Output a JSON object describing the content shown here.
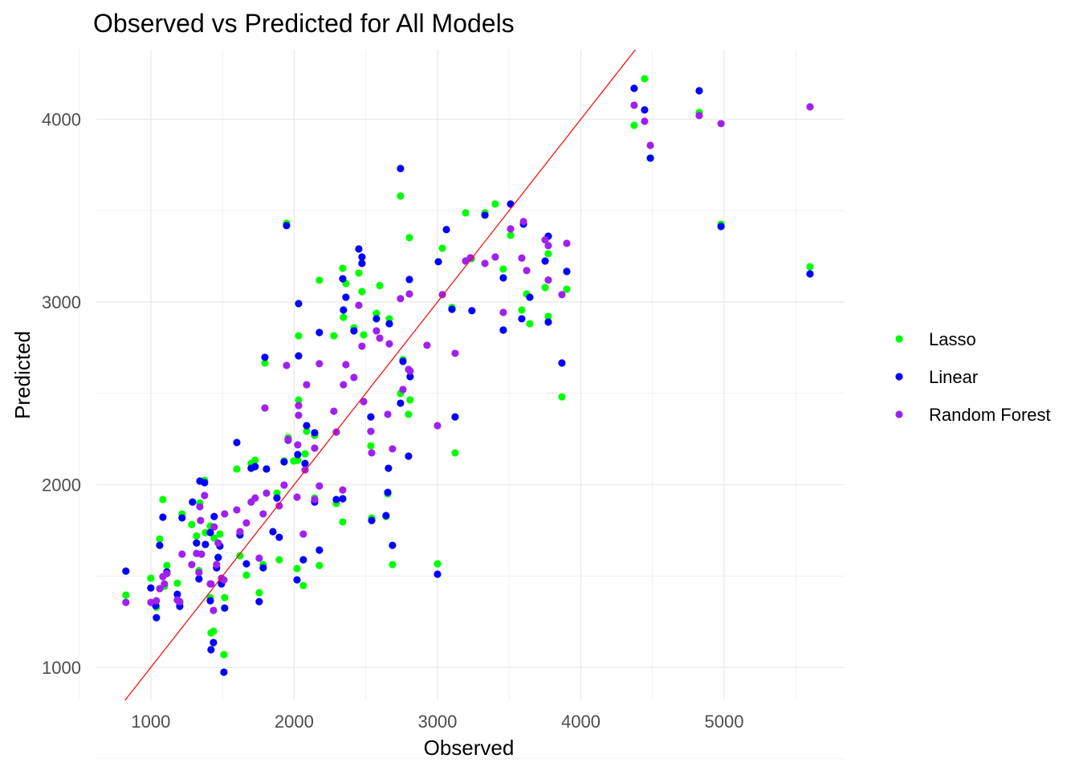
{
  "chart_data": {
    "type": "scatter",
    "title": "Observed vs Predicted for All Models",
    "xlabel": "Observed",
    "ylabel": "Predicted",
    "xlim": [
      620,
      5840
    ],
    "ylim": [
      820,
      4380
    ],
    "x_ticks": [
      1000,
      2000,
      3000,
      4000,
      5000
    ],
    "y_ticks": [
      1000,
      2000,
      3000,
      4000
    ],
    "grid": true,
    "legend_position": "right",
    "reference_line": {
      "type": "identity",
      "color": "#FF0000"
    },
    "series": [
      {
        "name": "Lasso",
        "color": "#00FF00",
        "points": [
          [
            4372,
            3967
          ],
          [
            4445,
            4222
          ],
          [
            4485,
            3787
          ],
          [
            4826,
            4037
          ],
          [
            4978,
            3426
          ],
          [
            5599,
            3193
          ],
          [
            3868,
            2481
          ],
          [
            3902,
            3070
          ],
          [
            3773,
            3264
          ],
          [
            3773,
            2921
          ],
          [
            3751,
            3079
          ],
          [
            3622,
            3044
          ],
          [
            3600,
            3430
          ],
          [
            3588,
            2956
          ],
          [
            3644,
            2881
          ],
          [
            3459,
            3180
          ],
          [
            3459,
            2846
          ],
          [
            3510,
            3365
          ],
          [
            3403,
            3536
          ],
          [
            3331,
            3488
          ],
          [
            3196,
            3488
          ],
          [
            3237,
            3237
          ],
          [
            3034,
            3294
          ],
          [
            3000,
            1567
          ],
          [
            3123,
            2174
          ],
          [
            3101,
            2970
          ],
          [
            2804,
            3352
          ],
          [
            2742,
            3580
          ],
          [
            2798,
            2385
          ],
          [
            2809,
            2464
          ],
          [
            2759,
            2684
          ],
          [
            2742,
            2499
          ],
          [
            2686,
            1563
          ],
          [
            2641,
            1826
          ],
          [
            2653,
            1950
          ],
          [
            2664,
            2908
          ],
          [
            2541,
            1818
          ],
          [
            2535,
            2213
          ],
          [
            2597,
            3090
          ],
          [
            2574,
            2938
          ],
          [
            2451,
            3158
          ],
          [
            2473,
            3057
          ],
          [
            2417,
            2859
          ],
          [
            2485,
            2820
          ],
          [
            2339,
            3184
          ],
          [
            2361,
            3101
          ],
          [
            2344,
            2916
          ],
          [
            2339,
            1796
          ],
          [
            2294,
            1897
          ],
          [
            2176,
            3119
          ],
          [
            2176,
            1558
          ],
          [
            2143,
            2270
          ],
          [
            2143,
            1927
          ],
          [
            2277,
            2815
          ],
          [
            2087,
            2292
          ],
          [
            2076,
            2169
          ],
          [
            2064,
            1448
          ],
          [
            2031,
            2815
          ],
          [
            2031,
            2464
          ],
          [
            2020,
            1541
          ],
          [
            2025,
            2134
          ],
          [
            1947,
            3431
          ],
          [
            1958,
            2257
          ],
          [
            1997,
            2130
          ],
          [
            1930,
            2130
          ],
          [
            1896,
            1589
          ],
          [
            1880,
            1954
          ],
          [
            1796,
            2666
          ],
          [
            1807,
            2086
          ],
          [
            1784,
            1563
          ],
          [
            1756,
            1409
          ],
          [
            1728,
            2134
          ],
          [
            1700,
            2116
          ],
          [
            1600,
            2086
          ],
          [
            1667,
            1505
          ],
          [
            1622,
            1611
          ],
          [
            1510,
            1070
          ],
          [
            1515,
            1382
          ],
          [
            1437,
            1198
          ],
          [
            1420,
            1189
          ],
          [
            1442,
            1708
          ],
          [
            1415,
            1774
          ],
          [
            1470,
            1602
          ],
          [
            1482,
            1730
          ],
          [
            1459,
            1545
          ],
          [
            1493,
            1465
          ],
          [
            1415,
            1382
          ],
          [
            1375,
            2024
          ],
          [
            1342,
            1900
          ],
          [
            1381,
            1738
          ],
          [
            1353,
            1620
          ],
          [
            1336,
            1530
          ],
          [
            1319,
            1720
          ],
          [
            1286,
            1782
          ],
          [
            1218,
            1840
          ],
          [
            1185,
            1461
          ],
          [
            1202,
            1347
          ],
          [
            1112,
            1558
          ],
          [
            1084,
            1919
          ],
          [
            1062,
            1703
          ],
          [
            1095,
            1444
          ],
          [
            1039,
            1330
          ],
          [
            1000,
            1488
          ],
          [
            826,
            1396
          ]
        ]
      },
      {
        "name": "Linear",
        "color": "#0000FF",
        "points": [
          [
            4372,
            4169
          ],
          [
            4445,
            4051
          ],
          [
            4485,
            3787
          ],
          [
            4826,
            4156
          ],
          [
            4978,
            3413
          ],
          [
            5599,
            3154
          ],
          [
            3868,
            2666
          ],
          [
            3902,
            3167
          ],
          [
            3773,
            3360
          ],
          [
            3773,
            2890
          ],
          [
            3751,
            3224
          ],
          [
            3644,
            3026
          ],
          [
            3600,
            3426
          ],
          [
            3588,
            2908
          ],
          [
            3459,
            3132
          ],
          [
            3459,
            2846
          ],
          [
            3510,
            3536
          ],
          [
            3331,
            3475
          ],
          [
            3240,
            2952
          ],
          [
            3062,
            3396
          ],
          [
            3006,
            3220
          ],
          [
            3000,
            1510
          ],
          [
            3123,
            2371
          ],
          [
            3101,
            2960
          ],
          [
            2804,
            3123
          ],
          [
            2742,
            3730
          ],
          [
            2798,
            2156
          ],
          [
            2809,
            2591
          ],
          [
            2759,
            2675
          ],
          [
            2742,
            2446
          ],
          [
            2686,
            1668
          ],
          [
            2641,
            1831
          ],
          [
            2653,
            1958
          ],
          [
            2664,
            2881
          ],
          [
            2658,
            2090
          ],
          [
            2541,
            1804
          ],
          [
            2535,
            2371
          ],
          [
            2574,
            2908
          ],
          [
            2451,
            3290
          ],
          [
            2473,
            3246
          ],
          [
            2473,
            3211
          ],
          [
            2417,
            2842
          ],
          [
            2339,
            3127
          ],
          [
            2361,
            3026
          ],
          [
            2344,
            2956
          ],
          [
            2339,
            1923
          ],
          [
            2294,
            1919
          ],
          [
            2176,
            2833
          ],
          [
            2176,
            1642
          ],
          [
            2143,
            2284
          ],
          [
            2143,
            1905
          ],
          [
            2087,
            2323
          ],
          [
            2076,
            2116
          ],
          [
            2064,
            1589
          ],
          [
            2031,
            2991
          ],
          [
            2031,
            2705
          ],
          [
            2020,
            1479
          ],
          [
            2025,
            2165
          ],
          [
            1947,
            3418
          ],
          [
            1958,
            2244
          ],
          [
            1930,
            2125
          ],
          [
            1896,
            1712
          ],
          [
            1880,
            1927
          ],
          [
            1796,
            2697
          ],
          [
            1807,
            2086
          ],
          [
            1852,
            1743
          ],
          [
            1784,
            1545
          ],
          [
            1756,
            1360
          ],
          [
            1728,
            2099
          ],
          [
            1700,
            2090
          ],
          [
            1600,
            2231
          ],
          [
            1667,
            1567
          ],
          [
            1622,
            1725
          ],
          [
            1510,
            974
          ],
          [
            1515,
            1325
          ],
          [
            1437,
            1136
          ],
          [
            1420,
            1097
          ],
          [
            1442,
            1826
          ],
          [
            1415,
            1738
          ],
          [
            1470,
            1602
          ],
          [
            1482,
            1664
          ],
          [
            1459,
            1545
          ],
          [
            1493,
            1457
          ],
          [
            1415,
            1365
          ],
          [
            1375,
            2011
          ],
          [
            1342,
            2020
          ],
          [
            1381,
            1673
          ],
          [
            1336,
            1484
          ],
          [
            1291,
            1905
          ],
          [
            1319,
            1681
          ],
          [
            1218,
            1818
          ],
          [
            1185,
            1400
          ],
          [
            1202,
            1334
          ],
          [
            1112,
            1523
          ],
          [
            1084,
            1822
          ],
          [
            1062,
            1668
          ],
          [
            1034,
            1338
          ],
          [
            1039,
            1272
          ],
          [
            1000,
            1435
          ],
          [
            826,
            1527
          ]
        ]
      },
      {
        "name": "Random Forest",
        "color": "#A020F0",
        "points": [
          [
            4372,
            4077
          ],
          [
            4445,
            3989
          ],
          [
            4485,
            3857
          ],
          [
            4826,
            4020
          ],
          [
            4978,
            3976
          ],
          [
            5599,
            4068
          ],
          [
            3868,
            3040
          ],
          [
            3902,
            3321
          ],
          [
            3773,
            3308
          ],
          [
            3773,
            3120
          ],
          [
            3751,
            3340
          ],
          [
            3622,
            3172
          ],
          [
            3600,
            3440
          ],
          [
            3588,
            3240
          ],
          [
            3459,
            2943
          ],
          [
            3510,
            3400
          ],
          [
            3403,
            3246
          ],
          [
            3331,
            3211
          ],
          [
            3230,
            3242
          ],
          [
            3196,
            3224
          ],
          [
            3034,
            3040
          ],
          [
            3000,
            2323
          ],
          [
            3123,
            2719
          ],
          [
            2927,
            2763
          ],
          [
            2804,
            3044
          ],
          [
            2742,
            3018
          ],
          [
            2798,
            2631
          ],
          [
            2809,
            2622
          ],
          [
            2759,
            2521
          ],
          [
            2686,
            2196
          ],
          [
            2653,
            2385
          ],
          [
            2664,
            2771
          ],
          [
            2541,
            2174
          ],
          [
            2535,
            2292
          ],
          [
            2597,
            2802
          ],
          [
            2574,
            2842
          ],
          [
            2451,
            2982
          ],
          [
            2473,
            2758
          ],
          [
            2417,
            2587
          ],
          [
            2485,
            2455
          ],
          [
            2361,
            2657
          ],
          [
            2344,
            2547
          ],
          [
            2339,
            1971
          ],
          [
            2294,
            2288
          ],
          [
            2176,
            2662
          ],
          [
            2176,
            1993
          ],
          [
            2143,
            2200
          ],
          [
            2143,
            1919
          ],
          [
            2277,
            2402
          ],
          [
            2087,
            2547
          ],
          [
            2076,
            2081
          ],
          [
            2064,
            1730
          ],
          [
            2031,
            2433
          ],
          [
            2031,
            2380
          ],
          [
            2020,
            1932
          ],
          [
            2025,
            2218
          ],
          [
            1947,
            2653
          ],
          [
            1958,
            2248
          ],
          [
            1930,
            1998
          ],
          [
            1896,
            1884
          ],
          [
            1796,
            2420
          ],
          [
            1807,
            1954
          ],
          [
            1784,
            1840
          ],
          [
            1756,
            1598
          ],
          [
            1728,
            1927
          ],
          [
            1700,
            1905
          ],
          [
            1600,
            1862
          ],
          [
            1667,
            1791
          ],
          [
            1622,
            1743
          ],
          [
            1510,
            1479
          ],
          [
            1515,
            1840
          ],
          [
            1437,
            1312
          ],
          [
            1420,
            1457
          ],
          [
            1442,
            1769
          ],
          [
            1470,
            1681
          ],
          [
            1459,
            1563
          ],
          [
            1493,
            1488
          ],
          [
            1415,
            1457
          ],
          [
            1375,
            1941
          ],
          [
            1342,
            1879
          ],
          [
            1347,
            1804
          ],
          [
            1353,
            1620
          ],
          [
            1336,
            1519
          ],
          [
            1319,
            1624
          ],
          [
            1286,
            1563
          ],
          [
            1218,
            1620
          ],
          [
            1185,
            1369
          ],
          [
            1202,
            1360
          ],
          [
            1112,
            1514
          ],
          [
            1084,
            1497
          ],
          [
            1062,
            1431
          ],
          [
            1095,
            1457
          ],
          [
            1039,
            1365
          ],
          [
            1000,
            1356
          ],
          [
            826,
            1356
          ]
        ]
      }
    ]
  }
}
